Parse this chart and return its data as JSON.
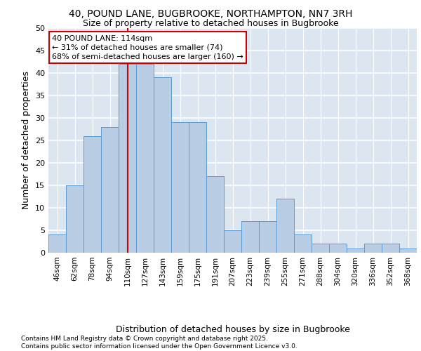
{
  "title_line1": "40, POUND LANE, BUGBROOKE, NORTHAMPTON, NN7 3RH",
  "title_line2": "Size of property relative to detached houses in Bugbrooke",
  "xlabel": "Distribution of detached houses by size in Bugbrooke",
  "ylabel": "Number of detached properties",
  "categories": [
    "46sqm",
    "62sqm",
    "78sqm",
    "94sqm",
    "110sqm",
    "127sqm",
    "143sqm",
    "159sqm",
    "175sqm",
    "191sqm",
    "207sqm",
    "223sqm",
    "239sqm",
    "255sqm",
    "271sqm",
    "288sqm",
    "304sqm",
    "320sqm",
    "336sqm",
    "352sqm",
    "368sqm"
  ],
  "values": [
    4,
    15,
    26,
    28,
    42,
    42,
    39,
    29,
    29,
    17,
    5,
    7,
    7,
    12,
    4,
    2,
    2,
    1,
    2,
    2,
    1
  ],
  "bar_color": "#b8cce4",
  "bar_edge_color": "#5b9bd5",
  "vline_x": 4,
  "vline_color": "#cc0000",
  "annotation_text": "40 POUND LANE: 114sqm\n← 31% of detached houses are smaller (74)\n68% of semi-detached houses are larger (160) →",
  "annotation_box_color": "#ffffff",
  "annotation_box_edge_color": "#cc0000",
  "ylim": [
    0,
    50
  ],
  "yticks": [
    0,
    5,
    10,
    15,
    20,
    25,
    30,
    35,
    40,
    45,
    50
  ],
  "background_color": "#dce6f1",
  "grid_color": "#ffffff",
  "footer": "Contains HM Land Registry data © Crown copyright and database right 2025.\nContains public sector information licensed under the Open Government Licence v3.0.",
  "title_fontsize": 10,
  "subtitle_fontsize": 9,
  "axis_label_fontsize": 9,
  "tick_fontsize": 7.5,
  "annotation_fontsize": 8,
  "footer_fontsize": 6.5
}
